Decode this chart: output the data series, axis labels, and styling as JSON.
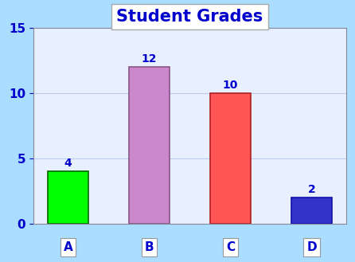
{
  "categories": [
    "A",
    "B",
    "C",
    "D"
  ],
  "values": [
    4,
    12,
    10,
    2
  ],
  "bar_colors": [
    "#00FF00",
    "#CC88CC",
    "#FF5555",
    "#3333CC"
  ],
  "bar_edgecolors": [
    "#006600",
    "#885588",
    "#AA2222",
    "#1111AA"
  ],
  "title": "Student Grades",
  "title_fontsize": 15,
  "title_color": "#0000CC",
  "title_fontweight": "bold",
  "ylim": [
    0,
    15
  ],
  "yticks": [
    0,
    5,
    10,
    15
  ],
  "tick_label_color": "#0000CC",
  "tick_label_fontsize": 11,
  "annotation_color": "#0000CC",
  "annotation_fontsize": 10,
  "background_color": "#AADDFF",
  "plot_bg_color": "#E8F0FF",
  "grid_color": "#BBCCEE",
  "bar_width": 0.5
}
